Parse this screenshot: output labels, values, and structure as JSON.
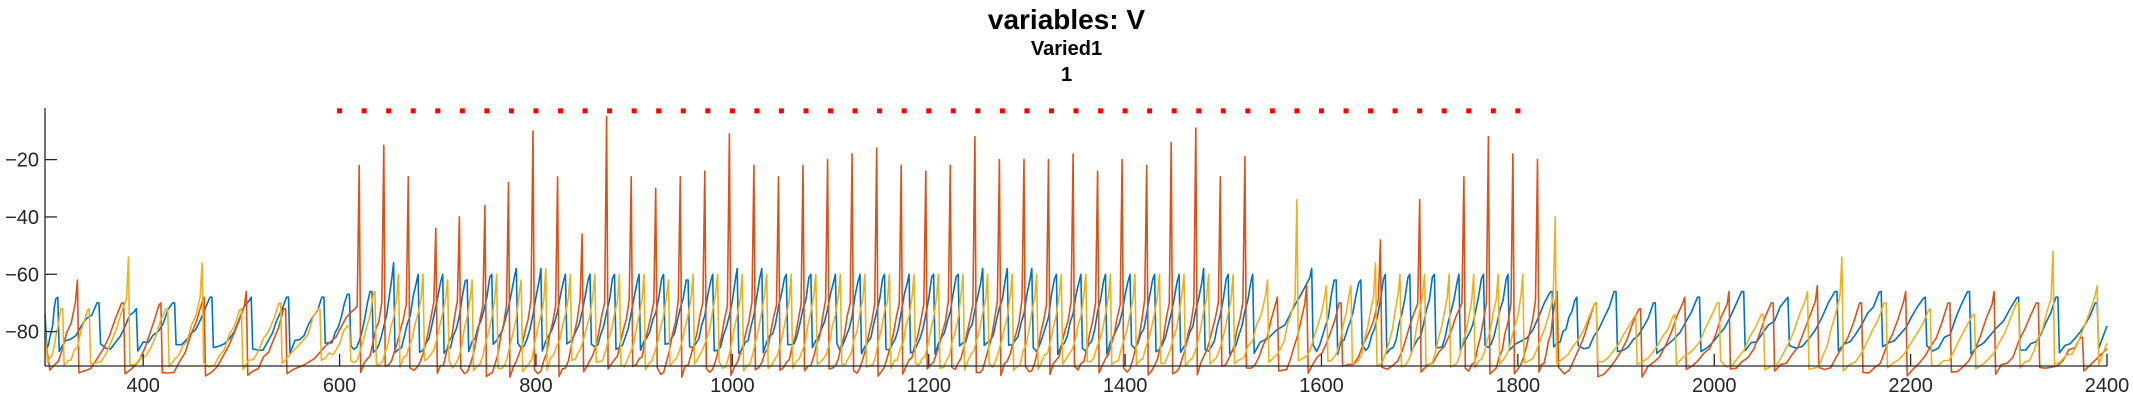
{
  "chart_data": {
    "type": "line",
    "title": "variables: V",
    "subtitle": "Varied1",
    "subtitle2": "1",
    "xlabel": "",
    "ylabel": "",
    "xlim": [
      300,
      2400
    ],
    "ylim": [
      -92,
      -2
    ],
    "xticks": [
      400,
      600,
      800,
      1000,
      1200,
      1400,
      1600,
      1800,
      2000,
      2200,
      2400
    ],
    "yticks": [
      -20,
      -40,
      -60,
      -80
    ],
    "grid": false,
    "legend": "none",
    "series": [
      {
        "color": "#0072BD",
        "baseline": -80,
        "peaks": [
          [
            313,
            -68
          ],
          [
            355,
            -70
          ],
          [
            393,
            -72
          ],
          [
            432,
            -70
          ],
          [
            470,
            -68
          ],
          [
            510,
            -68
          ],
          [
            548,
            -68
          ],
          [
            584,
            -68
          ],
          [
            610,
            -67
          ],
          [
            633,
            -66
          ],
          [
            655,
            -56
          ],
          [
            680,
            -60
          ],
          [
            705,
            -60
          ],
          [
            730,
            -62
          ],
          [
            755,
            -60
          ],
          [
            780,
            -58
          ],
          [
            805,
            -58
          ],
          [
            830,
            -60
          ],
          [
            855,
            -60
          ],
          [
            880,
            -60
          ],
          [
            905,
            -60
          ],
          [
            930,
            -60
          ],
          [
            955,
            -62
          ],
          [
            980,
            -60
          ],
          [
            1005,
            -58
          ],
          [
            1030,
            -58
          ],
          [
            1055,
            -60
          ],
          [
            1080,
            -60
          ],
          [
            1105,
            -60
          ],
          [
            1130,
            -60
          ],
          [
            1155,
            -60
          ],
          [
            1180,
            -60
          ],
          [
            1205,
            -60
          ],
          [
            1230,
            -60
          ],
          [
            1255,
            -58
          ],
          [
            1280,
            -58
          ],
          [
            1305,
            -58
          ],
          [
            1330,
            -60
          ],
          [
            1355,
            -60
          ],
          [
            1380,
            -60
          ],
          [
            1405,
            -60
          ],
          [
            1430,
            -60
          ],
          [
            1455,
            -60
          ],
          [
            1480,
            -58
          ],
          [
            1505,
            -60
          ],
          [
            1530,
            -60
          ],
          [
            1590,
            -58
          ],
          [
            1615,
            -62
          ],
          [
            1640,
            -62
          ],
          [
            1665,
            -60
          ],
          [
            1690,
            -60
          ],
          [
            1715,
            -60
          ],
          [
            1740,
            -60
          ],
          [
            1765,
            -60
          ],
          [
            1790,
            -60
          ],
          [
            1835,
            -66
          ],
          [
            1860,
            -68
          ],
          [
            1900,
            -66
          ],
          [
            1940,
            -70
          ],
          [
            1985,
            -68
          ],
          [
            2030,
            -66
          ],
          [
            2075,
            -68
          ],
          [
            2125,
            -66
          ],
          [
            2170,
            -66
          ],
          [
            2215,
            -68
          ],
          [
            2260,
            -66
          ],
          [
            2310,
            -68
          ],
          [
            2350,
            -68
          ],
          [
            2390,
            -70
          ]
        ]
      },
      {
        "color": "#D95319",
        "baseline": -88,
        "peaks": [
          [
            333,
            -62
          ],
          [
            380,
            -70
          ],
          [
            418,
            -70
          ],
          [
            462,
            -68
          ],
          [
            505,
            -66
          ],
          [
            545,
            -72
          ],
          [
            620,
            -22
          ],
          [
            645,
            -15
          ],
          [
            670,
            -26
          ],
          [
            698,
            -44
          ],
          [
            722,
            -40
          ],
          [
            748,
            -36
          ],
          [
            772,
            -28
          ],
          [
            797,
            -10
          ],
          [
            822,
            -26
          ],
          [
            847,
            -46
          ],
          [
            872,
            -5
          ],
          [
            897,
            -26
          ],
          [
            922,
            -30
          ],
          [
            947,
            -26
          ],
          [
            972,
            -24
          ],
          [
            997,
            -11
          ],
          [
            1022,
            -22
          ],
          [
            1047,
            -26
          ],
          [
            1072,
            -22
          ],
          [
            1097,
            -20
          ],
          [
            1122,
            -18
          ],
          [
            1147,
            -16
          ],
          [
            1172,
            -22
          ],
          [
            1197,
            -24
          ],
          [
            1222,
            -22
          ],
          [
            1247,
            -12
          ],
          [
            1272,
            -20
          ],
          [
            1297,
            -20
          ],
          [
            1322,
            -20
          ],
          [
            1347,
            -18
          ],
          [
            1372,
            -24
          ],
          [
            1397,
            -20
          ],
          [
            1422,
            -22
          ],
          [
            1447,
            -14
          ],
          [
            1472,
            -9
          ],
          [
            1497,
            -26
          ],
          [
            1522,
            -19
          ],
          [
            1555,
            -68
          ],
          [
            1585,
            -64
          ],
          [
            1620,
            -70
          ],
          [
            1660,
            -48
          ],
          [
            1700,
            -34
          ],
          [
            1745,
            -26
          ],
          [
            1770,
            -12
          ],
          [
            1795,
            -18
          ],
          [
            1820,
            -20
          ],
          [
            1840,
            -66
          ],
          [
            1880,
            -70
          ],
          [
            1925,
            -72
          ],
          [
            1970,
            -68
          ],
          [
            2015,
            -66
          ],
          [
            2060,
            -70
          ],
          [
            2105,
            -64
          ],
          [
            2150,
            -70
          ],
          [
            2195,
            -66
          ],
          [
            2240,
            -70
          ],
          [
            2285,
            -66
          ],
          [
            2330,
            -70
          ],
          [
            2375,
            -82
          ]
        ]
      },
      {
        "color": "#EDB120",
        "baseline": -86,
        "peaks": [
          [
            318,
            -72
          ],
          [
            345,
            -72
          ],
          [
            385,
            -54
          ],
          [
            425,
            -72
          ],
          [
            460,
            -56
          ],
          [
            500,
            -72
          ],
          [
            540,
            -70
          ],
          [
            580,
            -72
          ],
          [
            610,
            -78
          ],
          [
            636,
            -66
          ],
          [
            660,
            -60
          ],
          [
            685,
            -60
          ],
          [
            710,
            -62
          ],
          [
            735,
            -62
          ],
          [
            760,
            -60
          ],
          [
            785,
            -62
          ],
          [
            810,
            -58
          ],
          [
            835,
            -60
          ],
          [
            860,
            -60
          ],
          [
            885,
            -60
          ],
          [
            910,
            -60
          ],
          [
            935,
            -62
          ],
          [
            960,
            -60
          ],
          [
            985,
            -60
          ],
          [
            1010,
            -60
          ],
          [
            1035,
            -60
          ],
          [
            1060,
            -60
          ],
          [
            1085,
            -60
          ],
          [
            1110,
            -60
          ],
          [
            1135,
            -60
          ],
          [
            1160,
            -60
          ],
          [
            1185,
            -60
          ],
          [
            1210,
            -60
          ],
          [
            1235,
            -60
          ],
          [
            1260,
            -60
          ],
          [
            1285,
            -60
          ],
          [
            1310,
            -60
          ],
          [
            1335,
            -60
          ],
          [
            1360,
            -60
          ],
          [
            1385,
            -60
          ],
          [
            1410,
            -60
          ],
          [
            1435,
            -60
          ],
          [
            1460,
            -60
          ],
          [
            1485,
            -60
          ],
          [
            1510,
            -60
          ],
          [
            1545,
            -62
          ],
          [
            1575,
            -34
          ],
          [
            1605,
            -64
          ],
          [
            1630,
            -64
          ],
          [
            1655,
            -56
          ],
          [
            1680,
            -60
          ],
          [
            1705,
            -60
          ],
          [
            1730,
            -60
          ],
          [
            1755,
            -60
          ],
          [
            1780,
            -60
          ],
          [
            1805,
            -60
          ],
          [
            1838,
            -40
          ],
          [
            1880,
            -70
          ],
          [
            1920,
            -74
          ],
          [
            1960,
            -74
          ],
          [
            2005,
            -70
          ],
          [
            2050,
            -74
          ],
          [
            2095,
            -66
          ],
          [
            2130,
            -54
          ],
          [
            2175,
            -70
          ],
          [
            2220,
            -72
          ],
          [
            2265,
            -74
          ],
          [
            2310,
            -70
          ],
          [
            2345,
            -52
          ],
          [
            2390,
            -64
          ]
        ]
      }
    ],
    "markers": {
      "color": "#FF0000",
      "y": -3,
      "x": [
        600,
        625,
        650,
        675,
        700,
        725,
        750,
        775,
        800,
        825,
        850,
        875,
        900,
        925,
        950,
        975,
        1000,
        1025,
        1050,
        1075,
        1100,
        1125,
        1150,
        1175,
        1200,
        1225,
        1250,
        1275,
        1300,
        1325,
        1350,
        1375,
        1400,
        1425,
        1450,
        1475,
        1500,
        1525,
        1550,
        1575,
        1600,
        1625,
        1650,
        1675,
        1700,
        1725,
        1750,
        1775,
        1800
      ]
    }
  }
}
